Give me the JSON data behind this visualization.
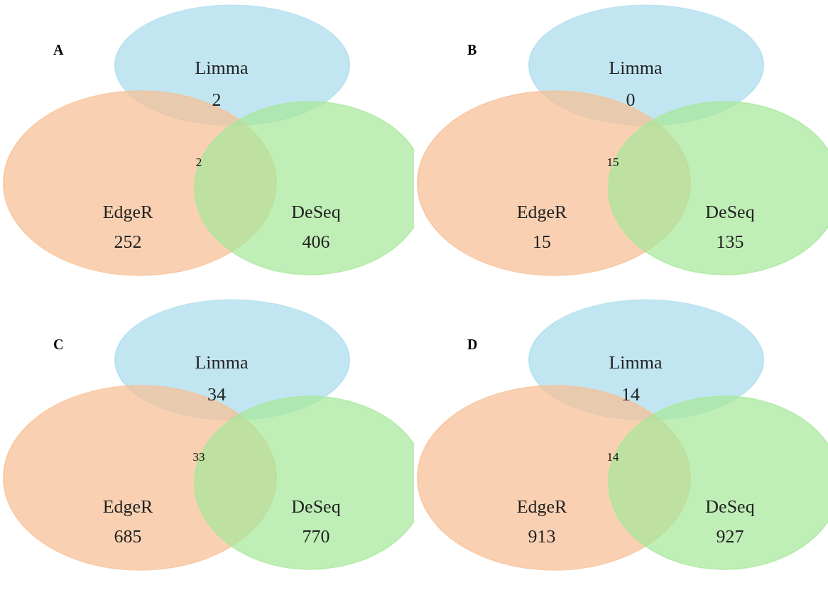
{
  "chart_data": [
    {
      "type": "other",
      "title": "A",
      "categories": [
        "Limma",
        "EdgeR",
        "DeSeq"
      ],
      "values": [
        2,
        252,
        406
      ],
      "data_labels": true,
      "colors": [
        "#a9dcec",
        "#f6bf94",
        "#a6e89a"
      ],
      "annotations": [
        "2"
      ]
    },
    {
      "type": "other",
      "title": "B",
      "categories": [
        "Limma",
        "EdgeR",
        "DeSeq"
      ],
      "values": [
        0,
        15,
        135
      ],
      "data_labels": true,
      "colors": [
        "#a9dcec",
        "#f6bf94",
        "#a6e89a"
      ],
      "annotations": [
        "15"
      ]
    },
    {
      "type": "other",
      "title": "C",
      "categories": [
        "Limma",
        "EdgeR",
        "DeSeq"
      ],
      "values": [
        34,
        685,
        770
      ],
      "data_labels": true,
      "colors": [
        "#a9dcec",
        "#f6bf94",
        "#a6e89a"
      ],
      "annotations": [
        "33"
      ]
    },
    {
      "type": "other",
      "title": "D",
      "categories": [
        "Limma",
        "EdgeR",
        "DeSeq"
      ],
      "values": [
        14,
        913,
        927
      ],
      "data_labels": true,
      "colors": [
        "#a9dcec",
        "#f6bf94",
        "#a6e89a"
      ],
      "annotations": [
        "14"
      ]
    }
  ]
}
